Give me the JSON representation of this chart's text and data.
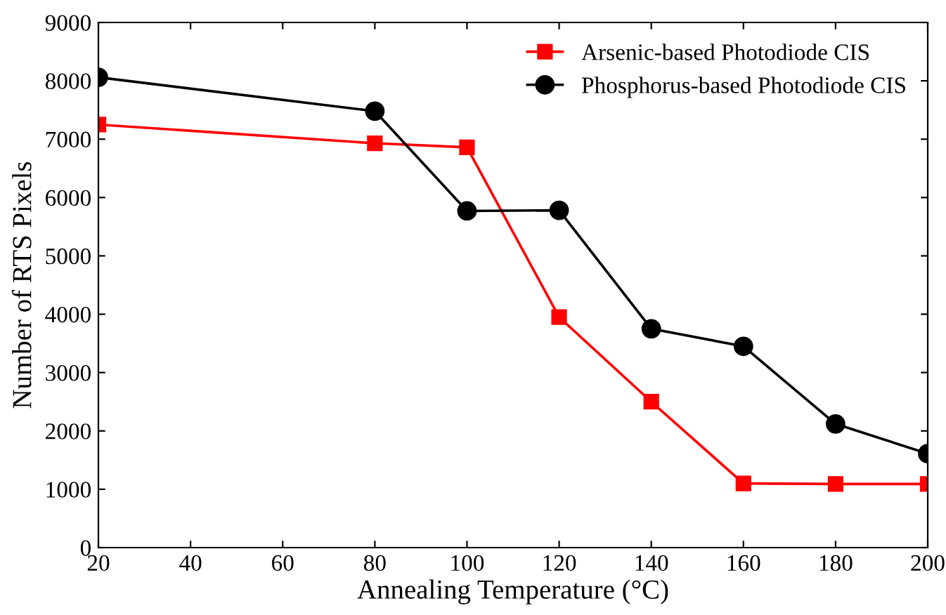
{
  "chart_data": {
    "type": "line",
    "xlabel": "Annealing Temperature (°C)",
    "ylabel": "Number of RTS Pixels",
    "x": [
      20,
      80,
      100,
      120,
      140,
      160,
      180,
      200
    ],
    "series": [
      {
        "name": "Arsenic-based Photodiode CIS",
        "color": "#ff0000",
        "marker": "square",
        "values": [
          7250,
          6930,
          6860,
          3950,
          2500,
          1100,
          1090,
          1090
        ]
      },
      {
        "name": "Phosphorus-based Photodiode CIS",
        "color": "#000000",
        "marker": "circle",
        "values": [
          8060,
          7480,
          5770,
          5780,
          3750,
          3450,
          2120,
          1610
        ]
      }
    ],
    "xlim": [
      20,
      200
    ],
    "xticks": [
      20,
      40,
      60,
      80,
      100,
      120,
      140,
      160,
      180,
      200
    ],
    "ylim": [
      0,
      9000
    ],
    "yticks": [
      0,
      1000,
      2000,
      3000,
      4000,
      5000,
      6000,
      7000,
      8000,
      9000
    ],
    "legend": "top right",
    "line_style": "solid"
  }
}
